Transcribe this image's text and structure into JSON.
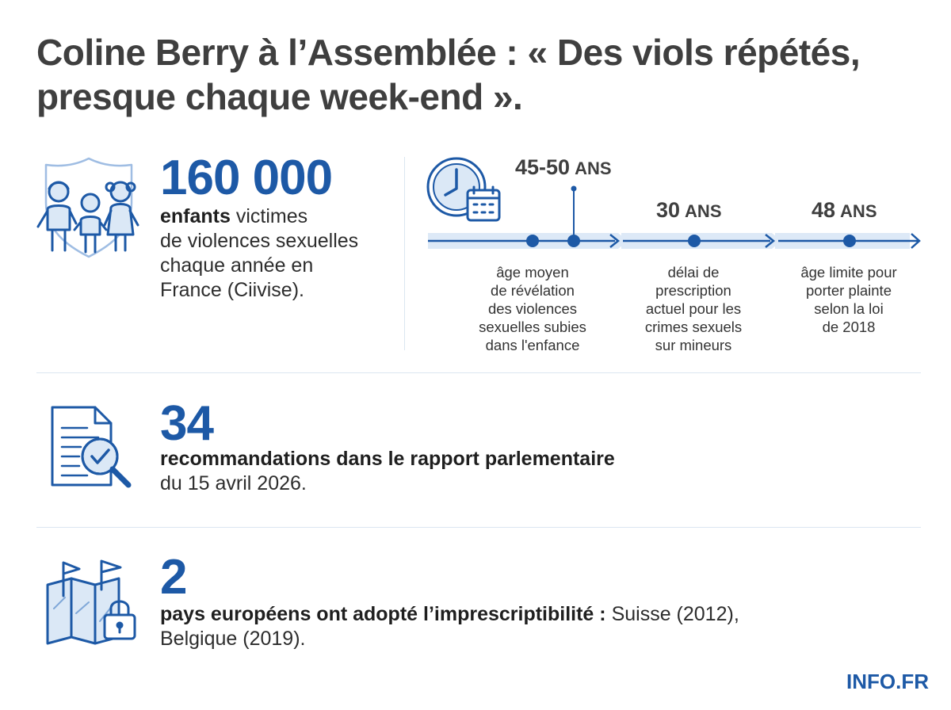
{
  "header": {
    "title_line1": "Coline Berry à l’Assemblée : « Des viols répétés,",
    "title_line2": "presque chaque week-end »."
  },
  "stat1": {
    "number": "160 000",
    "line1_bold": "enfants",
    "line1_rest": " victimes",
    "line2": "de violences sexuelles",
    "line3": "chaque année en",
    "line4": "France (Ciivise).",
    "icon": "children-shield-icon"
  },
  "timeline": {
    "icon": "clock-calendar-icon",
    "items": [
      {
        "value": "45-50",
        "unit": "ANS",
        "desc": [
          "âge moyen",
          "de révélation",
          "des violences",
          "sexuelles subies",
          "dans l'enfance"
        ]
      },
      {
        "value": "30",
        "unit": "ANS",
        "desc": [
          "délai de",
          "prescription",
          "actuel pour les",
          "crimes sexuels",
          "sur mineurs"
        ]
      },
      {
        "value": "48",
        "unit": "ANS",
        "desc": [
          "âge limite pour",
          "porter plainte",
          "selon la loi",
          "de 2018"
        ]
      }
    ]
  },
  "stat2": {
    "number": "34",
    "line1_bold": "recommandations dans le rapport parlementaire",
    "line2": "du 15 avril 2026.",
    "icon": "document-magnifier-icon"
  },
  "stat3": {
    "number": "2",
    "line1_bold": "pays européens ont adopté l’imprescriptibilité :",
    "line1_rest": " Suisse (2012),",
    "line2": "Belgique (2019).",
    "icon": "map-flags-lock-icon"
  },
  "footer": {
    "brand": "INFO.FR"
  },
  "colors": {
    "accent": "#1d59a6",
    "light": "#dbe8f6",
    "text": "#3f3f3f"
  }
}
